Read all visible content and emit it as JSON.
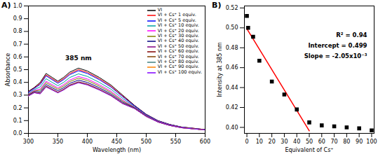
{
  "chart_data": [
    {
      "type": "line",
      "title": "A)",
      "xlabel": "Wavelength (nm)",
      "ylabel": "Absorbance",
      "x": [
        300,
        310,
        320,
        330,
        340,
        350,
        360,
        370,
        385,
        400,
        420,
        440,
        460,
        480,
        500,
        520,
        540,
        560,
        580,
        600
      ],
      "series": [
        {
          "name": "VI",
          "color": "#000000",
          "values": [
            0.33,
            0.36,
            0.4,
            0.47,
            0.44,
            0.41,
            0.44,
            0.48,
            0.512,
            0.49,
            0.44,
            0.38,
            0.3,
            0.22,
            0.15,
            0.1,
            0.07,
            0.05,
            0.04,
            0.03
          ]
        },
        {
          "name": "VI + Cs⁺ 1 equiv.",
          "color": "#ff0000",
          "values": [
            0.326,
            0.356,
            0.391,
            0.459,
            0.43,
            0.401,
            0.43,
            0.469,
            0.5,
            0.479,
            0.43,
            0.371,
            0.293,
            0.217,
            0.148,
            0.099,
            0.069,
            0.049,
            0.04,
            0.03
          ]
        },
        {
          "name": "VI + Cs⁺ 5 equiv.",
          "color": "#0000ff",
          "values": [
            0.323,
            0.353,
            0.384,
            0.451,
            0.422,
            0.393,
            0.422,
            0.46,
            0.491,
            0.47,
            0.422,
            0.364,
            0.288,
            0.216,
            0.147,
            0.098,
            0.069,
            0.049,
            0.039,
            0.029
          ]
        },
        {
          "name": "VI + Cs⁺ 10 equiv.",
          "color": "#00a0a0",
          "values": [
            0.315,
            0.344,
            0.365,
            0.429,
            0.401,
            0.374,
            0.401,
            0.438,
            0.467,
            0.447,
            0.401,
            0.347,
            0.274,
            0.21,
            0.143,
            0.096,
            0.067,
            0.048,
            0.038,
            0.029
          ]
        },
        {
          "name": "VI + Cs⁺ 20 equiv.",
          "color": "#ff00ff",
          "values": [
            0.309,
            0.337,
            0.348,
            0.409,
            0.383,
            0.357,
            0.383,
            0.418,
            0.446,
            0.427,
            0.383,
            0.331,
            0.261,
            0.206,
            0.14,
            0.094,
            0.066,
            0.047,
            0.037,
            0.028
          ]
        },
        {
          "name": "VI + Cs⁺ 30 equiv.",
          "color": "#808000",
          "values": [
            0.305,
            0.332,
            0.338,
            0.398,
            0.372,
            0.347,
            0.372,
            0.406,
            0.433,
            0.415,
            0.372,
            0.321,
            0.254,
            0.203,
            0.138,
            0.092,
            0.065,
            0.046,
            0.037,
            0.028
          ]
        },
        {
          "name": "VI + Cs⁺ 40 equiv.",
          "color": "#000080",
          "values": [
            0.3,
            0.327,
            0.326,
            0.384,
            0.359,
            0.335,
            0.359,
            0.392,
            0.418,
            0.4,
            0.359,
            0.31,
            0.245,
            0.2,
            0.136,
            0.091,
            0.064,
            0.045,
            0.036,
            0.027
          ]
        },
        {
          "name": "VI + Cs⁺ 50 equiv.",
          "color": "#800080",
          "values": [
            0.296,
            0.323,
            0.316,
            0.372,
            0.348,
            0.324,
            0.348,
            0.38,
            0.405,
            0.388,
            0.348,
            0.301,
            0.237,
            0.197,
            0.134,
            0.09,
            0.063,
            0.045,
            0.036,
            0.027
          ]
        },
        {
          "name": "VI + Cs⁺ 60 equiv.",
          "color": "#800000",
          "values": [
            0.295,
            0.321,
            0.314,
            0.369,
            0.345,
            0.322,
            0.345,
            0.377,
            0.402,
            0.385,
            0.345,
            0.298,
            0.236,
            0.196,
            0.134,
            0.089,
            0.062,
            0.045,
            0.036,
            0.027
          ]
        },
        {
          "name": "VI + Cs⁺ 70 equiv.",
          "color": "#804000",
          "values": [
            0.295,
            0.321,
            0.313,
            0.368,
            0.344,
            0.321,
            0.344,
            0.376,
            0.401,
            0.384,
            0.344,
            0.298,
            0.235,
            0.196,
            0.133,
            0.089,
            0.062,
            0.044,
            0.036,
            0.027
          ]
        },
        {
          "name": "VI + Cs⁺ 80 equiv.",
          "color": "#408080",
          "values": [
            0.294,
            0.32,
            0.312,
            0.367,
            0.344,
            0.32,
            0.344,
            0.375,
            0.4,
            0.383,
            0.344,
            0.297,
            0.234,
            0.196,
            0.133,
            0.089,
            0.062,
            0.044,
            0.036,
            0.027
          ]
        },
        {
          "name": "VI + Cs⁺ 90 equiv.",
          "color": "#ff8000",
          "values": [
            0.294,
            0.32,
            0.312,
            0.366,
            0.343,
            0.32,
            0.343,
            0.374,
            0.399,
            0.382,
            0.343,
            0.296,
            0.234,
            0.195,
            0.133,
            0.089,
            0.062,
            0.044,
            0.035,
            0.027
          ]
        },
        {
          "name": "VI + Cs⁺ 100 equiv.",
          "color": "#8000ff",
          "values": [
            0.293,
            0.319,
            0.31,
            0.364,
            0.341,
            0.318,
            0.341,
            0.372,
            0.397,
            0.38,
            0.341,
            0.295,
            0.233,
            0.195,
            0.133,
            0.089,
            0.062,
            0.044,
            0.035,
            0.027
          ]
        }
      ],
      "xlim": [
        300,
        600
      ],
      "xticks": [
        300,
        350,
        400,
        450,
        500,
        550,
        600
      ],
      "ylim": [
        0,
        1
      ],
      "yticks": [
        {
          "value": 0,
          "label": "0.0"
        },
        0.1,
        0.2,
        0.3,
        0.4,
        0.5,
        0.6,
        0.7,
        0.8,
        0.9,
        {
          "value": 1,
          "label": "1.0"
        }
      ],
      "annotations": [
        "385 nm"
      ],
      "legend": "upper right",
      "grid": false
    },
    {
      "type": "scatter",
      "title": "B)",
      "xlabel": "Equivalent of Cs⁺",
      "ylabel": "Intensity at 385 nm",
      "x": [
        0,
        1,
        5,
        10,
        20,
        30,
        40,
        50,
        60,
        70,
        80,
        90,
        100
      ],
      "values": [
        0.512,
        0.5,
        0.491,
        0.467,
        0.446,
        0.433,
        0.418,
        0.405,
        0.402,
        0.401,
        0.4,
        0.399,
        0.397
      ],
      "color": "#000000",
      "marker": "square",
      "fit": {
        "x": [
          0,
          50
        ],
        "y": [
          0.499,
          0.3965
        ],
        "color": "#ff0000",
        "line_style": "solid"
      },
      "xlim": [
        -2,
        102
      ],
      "xticks": [
        0,
        10,
        20,
        30,
        40,
        50,
        60,
        70,
        80,
        90,
        100
      ],
      "ylim": [
        0.394,
        0.522
      ],
      "yticks": [
        {
          "value": 0.4,
          "label": "0.40"
        },
        0.42,
        0.44,
        0.46,
        0.48,
        {
          "value": 0.5,
          "label": "0.50"
        },
        0.52
      ],
      "annotations": [
        "R² = 0.94",
        "Intercept = 0.499",
        "Slope = -2.05x10⁻³"
      ],
      "grid": false
    }
  ]
}
